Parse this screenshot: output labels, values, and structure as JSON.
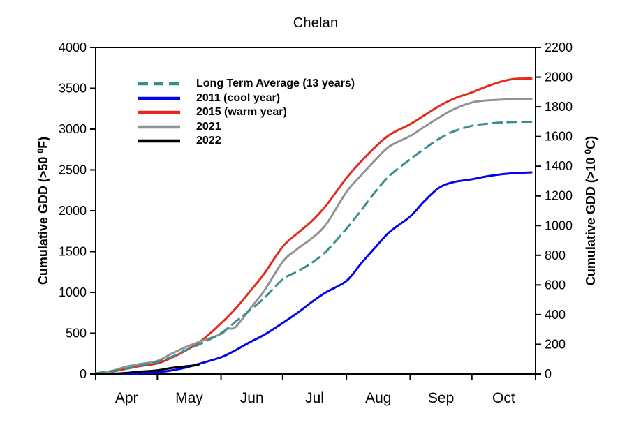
{
  "chart_data": {
    "type": "line",
    "title": "Chelan",
    "x_axis": {
      "unit": "day-of-season (Apr 1 = 0)",
      "range_days": [
        0,
        214
      ],
      "month_tick_days": [
        0,
        30,
        61,
        91,
        122,
        153,
        183,
        214
      ],
      "month_labels": [
        "Apr",
        "May",
        "Jun",
        "Jul",
        "Aug",
        "Sep",
        "Oct"
      ],
      "month_label_center_days": [
        15,
        45.5,
        76,
        106.5,
        137.5,
        168,
        198.5
      ]
    },
    "y_axis_left": {
      "label_parts": [
        "Cumulative GDD (>50 ",
        "0",
        "F)"
      ],
      "ticks": [
        0,
        500,
        1000,
        1500,
        2000,
        2500,
        3000,
        3500,
        4000
      ],
      "range": [
        0,
        4000
      ]
    },
    "y_axis_right": {
      "label_parts": [
        "Cumulative GDD (>10 ",
        "0",
        "C)"
      ],
      "ticks": [
        0,
        200,
        400,
        600,
        800,
        1000,
        1200,
        1400,
        1600,
        1800,
        2000,
        2200
      ],
      "range": [
        0,
        2200
      ]
    },
    "legend_position": "top-left-inside",
    "grid": false,
    "series": [
      {
        "name": "2011 (cool year)",
        "color": "#0202ee",
        "dash": false,
        "days": [
          0,
          7,
          14,
          21,
          30,
          37,
          44,
          51,
          61,
          68,
          75,
          82,
          91,
          98,
          105,
          112,
          122,
          129,
          136,
          143,
          153,
          160,
          167,
          174,
          183,
          190,
          197,
          204,
          212
        ],
        "values": [
          0,
          0,
          2,
          5,
          20,
          45,
          80,
          130,
          205,
          290,
          390,
          480,
          625,
          745,
          880,
          1000,
          1140,
          1350,
          1550,
          1740,
          1930,
          2120,
          2280,
          2350,
          2385,
          2420,
          2445,
          2460,
          2470
        ]
      },
      {
        "name": "2015 (warm year)",
        "color": "#e42b1b",
        "dash": false,
        "days": [
          0,
          7,
          14,
          21,
          30,
          37,
          44,
          51,
          61,
          68,
          75,
          82,
          91,
          98,
          105,
          112,
          122,
          129,
          136,
          143,
          153,
          160,
          167,
          174,
          183,
          190,
          197,
          204,
          212
        ],
        "values": [
          0,
          25,
          60,
          95,
          130,
          200,
          290,
          400,
          620,
          800,
          1010,
          1230,
          1560,
          1720,
          1870,
          2060,
          2400,
          2600,
          2780,
          2930,
          3060,
          3170,
          3280,
          3370,
          3450,
          3520,
          3580,
          3615,
          3620
        ]
      },
      {
        "name": "2021",
        "color": "#929292",
        "dash": false,
        "days": [
          0,
          7,
          14,
          21,
          30,
          37,
          44,
          51,
          61,
          64,
          68,
          75,
          82,
          91,
          98,
          105,
          112,
          122,
          129,
          136,
          143,
          153,
          160,
          167,
          174,
          183,
          190,
          197,
          204,
          212
        ],
        "values": [
          0,
          30,
          85,
          120,
          160,
          250,
          330,
          400,
          490,
          555,
          575,
          795,
          1020,
          1375,
          1530,
          1660,
          1830,
          2230,
          2430,
          2620,
          2790,
          2915,
          3030,
          3140,
          3240,
          3325,
          3350,
          3360,
          3368,
          3370
        ]
      },
      {
        "name": "Long Term Average (13 years)",
        "color": "#3a8d8d",
        "dash": true,
        "days": [
          0,
          7,
          14,
          21,
          30,
          37,
          44,
          51,
          61,
          68,
          75,
          82,
          91,
          98,
          105,
          112,
          122,
          129,
          136,
          143,
          153,
          160,
          167,
          174,
          183,
          190,
          197,
          204,
          212
        ],
        "values": [
          10,
          35,
          60,
          100,
          150,
          210,
          295,
          370,
          500,
          640,
          780,
          930,
          1160,
          1255,
          1360,
          1500,
          1780,
          2000,
          2230,
          2430,
          2630,
          2760,
          2880,
          2970,
          3040,
          3065,
          3080,
          3088,
          3090
        ]
      },
      {
        "name": "2022",
        "color": "#000000",
        "dash": false,
        "days": [
          0,
          7,
          14,
          21,
          30,
          37,
          44,
          50
        ],
        "values": [
          0,
          3,
          12,
          28,
          45,
          75,
          95,
          110
        ]
      }
    ],
    "legend_order": [
      "Long Term Average (13 years)",
      "2011 (cool year)",
      "2015 (warm year)",
      "2021",
      "2022"
    ]
  }
}
